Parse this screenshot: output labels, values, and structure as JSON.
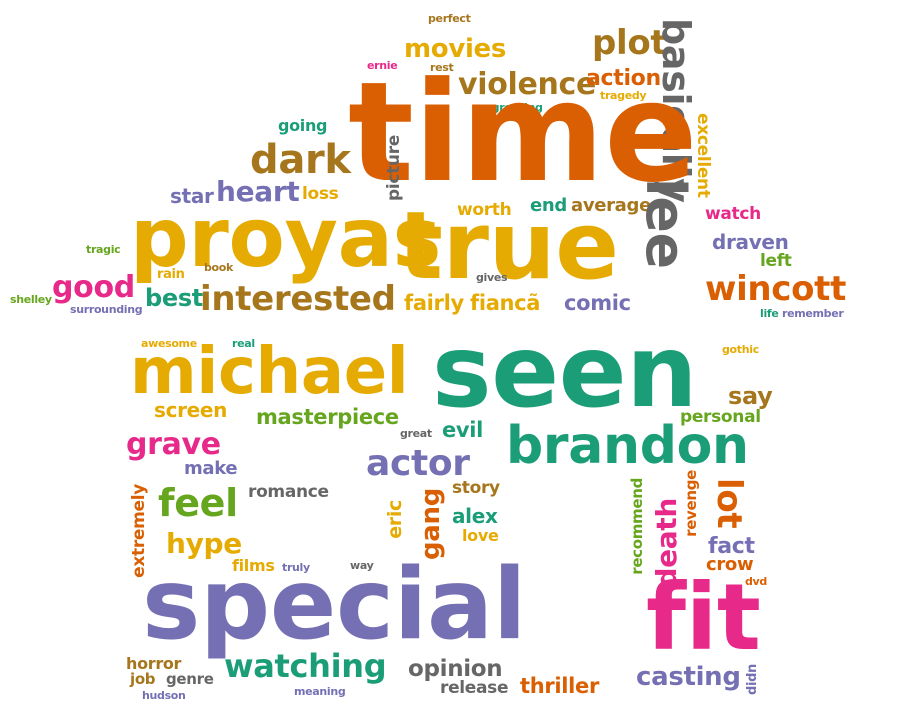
{
  "palette": {
    "orange": "#d95f02",
    "gold": "#e6ab02",
    "teal": "#1b9e77",
    "purple": "#7570b3",
    "pink": "#e7298a",
    "green": "#66a61e",
    "brown": "#a6761d",
    "gray": "#666666"
  },
  "words": [
    {
      "text": "perfect",
      "color": "brown"
    },
    {
      "text": "movies",
      "color": "gold"
    },
    {
      "text": "plot",
      "color": "brown"
    },
    {
      "text": "basically",
      "color": "gray"
    },
    {
      "text": "ernie",
      "color": "pink"
    },
    {
      "text": "rest",
      "color": "brown"
    },
    {
      "text": "violence",
      "color": "brown"
    },
    {
      "text": "action",
      "color": "orange"
    },
    {
      "text": "tragedy",
      "color": "gold"
    },
    {
      "text": "engrossing",
      "color": "teal"
    },
    {
      "text": "time",
      "color": "orange"
    },
    {
      "text": "going",
      "color": "teal"
    },
    {
      "text": "picture",
      "color": "gray"
    },
    {
      "text": "excellent",
      "color": "gold"
    },
    {
      "text": "dark",
      "color": "brown"
    },
    {
      "text": "star",
      "color": "purple"
    },
    {
      "text": "heart",
      "color": "purple"
    },
    {
      "text": "loss",
      "color": "gold"
    },
    {
      "text": "worth",
      "color": "gold"
    },
    {
      "text": "end",
      "color": "teal"
    },
    {
      "text": "average",
      "color": "brown"
    },
    {
      "text": "lee",
      "color": "gray"
    },
    {
      "text": "watch",
      "color": "pink"
    },
    {
      "text": "proyas",
      "color": "gold"
    },
    {
      "text": "true",
      "color": "gold"
    },
    {
      "text": "draven",
      "color": "purple"
    },
    {
      "text": "tragic",
      "color": "green"
    },
    {
      "text": "rain",
      "color": "gold"
    },
    {
      "text": "book",
      "color": "brown"
    },
    {
      "text": "gives",
      "color": "gray"
    },
    {
      "text": "left",
      "color": "green"
    },
    {
      "text": "good",
      "color": "pink"
    },
    {
      "text": "wincott",
      "color": "orange"
    },
    {
      "text": "shelley",
      "color": "green"
    },
    {
      "text": "surrounding",
      "color": "purple"
    },
    {
      "text": "best",
      "color": "teal"
    },
    {
      "text": "interested",
      "color": "brown"
    },
    {
      "text": "fairly",
      "color": "gold"
    },
    {
      "text": "fiancã",
      "color": "gold"
    },
    {
      "text": "comic",
      "color": "purple"
    },
    {
      "text": "life",
      "color": "teal"
    },
    {
      "text": "remember",
      "color": "purple"
    },
    {
      "text": "awesome",
      "color": "gold"
    },
    {
      "text": "real",
      "color": "teal"
    },
    {
      "text": "gothic",
      "color": "gold"
    },
    {
      "text": "michael",
      "color": "gold"
    },
    {
      "text": "seen",
      "color": "teal"
    },
    {
      "text": "say",
      "color": "brown"
    },
    {
      "text": "screen",
      "color": "gold"
    },
    {
      "text": "masterpiece",
      "color": "green"
    },
    {
      "text": "personal",
      "color": "green"
    },
    {
      "text": "great",
      "color": "gray"
    },
    {
      "text": "evil",
      "color": "teal"
    },
    {
      "text": "brandon",
      "color": "teal"
    },
    {
      "text": "grave",
      "color": "pink"
    },
    {
      "text": "make",
      "color": "purple"
    },
    {
      "text": "actor",
      "color": "purple"
    },
    {
      "text": "romance",
      "color": "gray"
    },
    {
      "text": "story",
      "color": "brown"
    },
    {
      "text": "feel",
      "color": "green"
    },
    {
      "text": "extremely",
      "color": "orange"
    },
    {
      "text": "eric",
      "color": "gold"
    },
    {
      "text": "gang",
      "color": "orange"
    },
    {
      "text": "alex",
      "color": "teal"
    },
    {
      "text": "love",
      "color": "gold"
    },
    {
      "text": "recommend",
      "color": "green"
    },
    {
      "text": "death",
      "color": "pink"
    },
    {
      "text": "revenge",
      "color": "orange"
    },
    {
      "text": "lot",
      "color": "orange"
    },
    {
      "text": "fact",
      "color": "purple"
    },
    {
      "text": "crow",
      "color": "orange"
    },
    {
      "text": "hype",
      "color": "gold"
    },
    {
      "text": "films",
      "color": "gold"
    },
    {
      "text": "truly",
      "color": "purple"
    },
    {
      "text": "way",
      "color": "gray"
    },
    {
      "text": "dvd",
      "color": "orange"
    },
    {
      "text": "special",
      "color": "purple"
    },
    {
      "text": "fit",
      "color": "pink"
    },
    {
      "text": "horror",
      "color": "brown"
    },
    {
      "text": "watching",
      "color": "teal"
    },
    {
      "text": "opinion",
      "color": "gray"
    },
    {
      "text": "job",
      "color": "brown"
    },
    {
      "text": "genre",
      "color": "gray"
    },
    {
      "text": "release",
      "color": "gray"
    },
    {
      "text": "thriller",
      "color": "orange"
    },
    {
      "text": "casting",
      "color": "purple"
    },
    {
      "text": "didn",
      "color": "purple"
    },
    {
      "text": "hudson",
      "color": "purple"
    },
    {
      "text": "meaning",
      "color": "purple"
    }
  ]
}
